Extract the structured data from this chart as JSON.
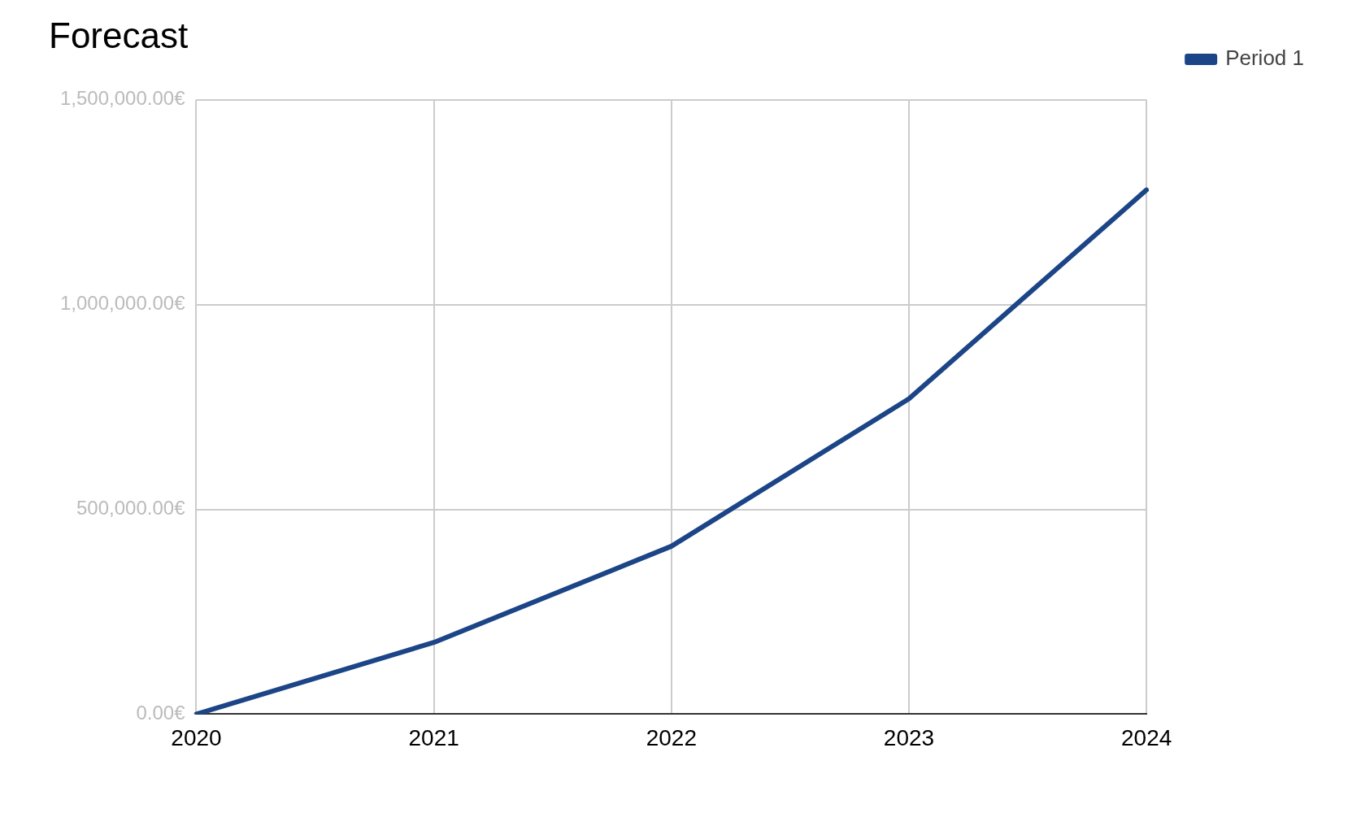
{
  "chart_data": {
    "type": "line",
    "title": "Forecast",
    "categories": [
      "2020",
      "2021",
      "2022",
      "2023",
      "2024"
    ],
    "series": [
      {
        "name": "Period 1",
        "color": "#1c4587",
        "values": [
          0,
          175000,
          410000,
          770000,
          1280000
        ]
      }
    ],
    "ylim": [
      0,
      1500000
    ],
    "yticks": [
      {
        "value": 0,
        "label": "0.00€"
      },
      {
        "value": 500000,
        "label": "500,000.00€"
      },
      {
        "value": 1000000,
        "label": "1,000,000.00€"
      },
      {
        "value": 1500000,
        "label": "1,500,000.00€"
      }
    ],
    "grid": true,
    "legend": "top right",
    "marker": "none",
    "line_style": "solid"
  }
}
